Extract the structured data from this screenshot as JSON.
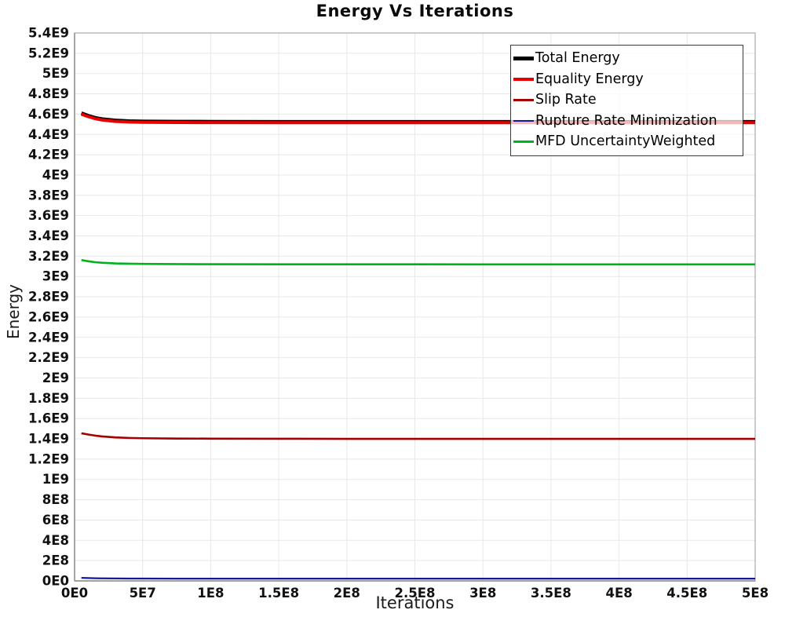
{
  "colors": {
    "grid": "#e8e8e8",
    "plot_border": "#b0b0b0",
    "axis_spine": "#8a8a8a",
    "tick_text": "#111111",
    "legend_border": "#3a3a3a"
  },
  "chart_data": {
    "type": "line",
    "title": "Energy Vs Iterations",
    "xlabel": "Iterations",
    "ylabel": "Energy",
    "xlim": [
      0,
      500000000.0
    ],
    "ylim": [
      0,
      5400000000.0
    ],
    "grid": true,
    "legend_position": "top-right",
    "x_tick_values": [
      0,
      50000000.0,
      100000000.0,
      150000000.0,
      200000000.0,
      250000000.0,
      300000000.0,
      350000000.0,
      400000000.0,
      450000000.0,
      500000000.0
    ],
    "x_tick_labels": [
      "0E0",
      "5E7",
      "1E8",
      "1.5E8",
      "2E8",
      "2.5E8",
      "3E8",
      "3.5E8",
      "4E8",
      "4.5E8",
      "5E8"
    ],
    "y_tick_values": [
      0,
      200000000.0,
      400000000.0,
      600000000.0,
      800000000.0,
      1000000000.0,
      1200000000.0,
      1400000000.0,
      1600000000.0,
      1800000000.0,
      2000000000.0,
      2200000000.0,
      2400000000.0,
      2600000000.0,
      2800000000.0,
      3000000000.0,
      3200000000.0,
      3400000000.0,
      3600000000.0,
      3800000000.0,
      4000000000.0,
      4200000000.0,
      4400000000.0,
      4600000000.0,
      4800000000.0,
      5000000000.0,
      5200000000.0,
      5400000000.0
    ],
    "y_tick_labels": [
      "0E0",
      "2E8",
      "4E8",
      "6E8",
      "8E8",
      "1E9",
      "1.2E9",
      "1.4E9",
      "1.6E9",
      "1.8E9",
      "2E9",
      "2.2E9",
      "2.4E9",
      "2.6E9",
      "2.8E9",
      "3E9",
      "3.2E9",
      "3.4E9",
      "3.6E9",
      "3.8E9",
      "4E9",
      "4.2E9",
      "4.4E9",
      "4.6E9",
      "4.8E9",
      "5E9",
      "5.2E9",
      "5.4E9"
    ],
    "x": [
      5000000.0,
      10000000.0,
      15000000.0,
      20000000.0,
      30000000.0,
      40000000.0,
      50000000.0,
      75000000.0,
      100000000.0,
      150000000.0,
      200000000.0,
      250000000.0,
      300000000.0,
      350000000.0,
      400000000.0,
      450000000.0,
      500000000.0
    ],
    "series": [
      {
        "name": "Total Energy",
        "color": "#000000",
        "width": 4.5,
        "values": [
          4610000000.0,
          4585000000.0,
          4565000000.0,
          4552000000.0,
          4538000000.0,
          4532000000.0,
          4529000000.0,
          4527000000.0,
          4526000000.0,
          4525000000.0,
          4525000000.0,
          4525000000.0,
          4525000000.0,
          4525000000.0,
          4525000000.0,
          4525000000.0,
          4525000000.0
        ]
      },
      {
        "name": "Equality Energy",
        "color": "#e60000",
        "width": 4,
        "values": [
          4600000000.0,
          4576000000.0,
          4556000000.0,
          4543000000.0,
          4529000000.0,
          4523000000.0,
          4520000000.0,
          4518000000.0,
          4517000000.0,
          4516000000.0,
          4516000000.0,
          4516000000.0,
          4516000000.0,
          4516000000.0,
          4516000000.0,
          4516000000.0,
          4516000000.0
        ]
      },
      {
        "name": "Slip Rate",
        "color": "#a40000",
        "width": 2.6,
        "values": [
          1455000000.0,
          1443000000.0,
          1432000000.0,
          1424000000.0,
          1414000000.0,
          1409000000.0,
          1406000000.0,
          1403000000.0,
          1402000000.0,
          1401000000.0,
          1400000000.0,
          1400000000.0,
          1400000000.0,
          1400000000.0,
          1400000000.0,
          1400000000.0,
          1400000000.0
        ]
      },
      {
        "name": "Rupture Rate Minimization",
        "color": "#16169b",
        "width": 2.3,
        "values": [
          30000000.0,
          28000000.0,
          26000000.0,
          25000000.0,
          24000000.0,
          23000000.0,
          23000000.0,
          22000000.0,
          22000000.0,
          22000000.0,
          22000000.0,
          22000000.0,
          22000000.0,
          22000000.0,
          22000000.0,
          22000000.0,
          22000000.0
        ]
      },
      {
        "name": "MFD UncertaintyWeighted",
        "color": "#00b31e",
        "width": 2.6,
        "values": [
          3162000000.0,
          3150000000.0,
          3141000000.0,
          3136000000.0,
          3129000000.0,
          3126000000.0,
          3124000000.0,
          3122000000.0,
          3121000000.0,
          3120000000.0,
          3120000000.0,
          3120000000.0,
          3119000000.0,
          3119000000.0,
          3119000000.0,
          3119000000.0,
          3119000000.0
        ]
      }
    ]
  }
}
